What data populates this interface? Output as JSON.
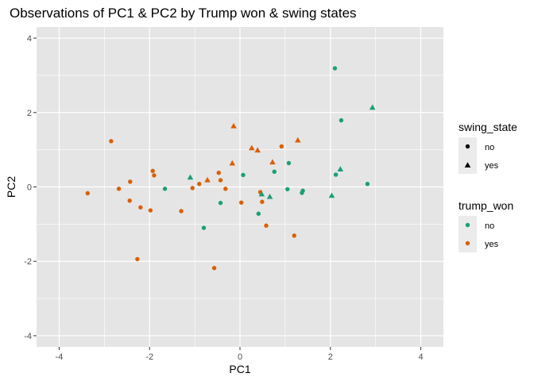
{
  "chart_data": {
    "type": "scatter",
    "title": "Observations of PC1 & PC2 by Trump won & swing states",
    "xlabel": "PC1",
    "ylabel": "PC2",
    "xlim": [
      -4.5,
      4.5
    ],
    "ylim": [
      -4.3,
      4.3
    ],
    "x_ticks": [
      -4,
      -2,
      0,
      2,
      4
    ],
    "y_ticks": [
      -4,
      -2,
      0,
      2,
      4
    ],
    "grid": true,
    "legend_position": "right",
    "legends": {
      "shape": {
        "title": "swing_state",
        "entries": [
          {
            "label": "no",
            "shape": "circle"
          },
          {
            "label": "yes",
            "shape": "triangle"
          }
        ]
      },
      "color": {
        "title": "trump_won",
        "entries": [
          {
            "label": "no",
            "color": "#1b9e77"
          },
          {
            "label": "yes",
            "color": "#d95f02"
          }
        ]
      }
    },
    "points": [
      {
        "x": -3.37,
        "y": -0.17,
        "swing_state": "no",
        "trump_won": "yes"
      },
      {
        "x": -2.85,
        "y": 1.23,
        "swing_state": "no",
        "trump_won": "yes"
      },
      {
        "x": -2.68,
        "y": -0.05,
        "swing_state": "no",
        "trump_won": "yes"
      },
      {
        "x": -2.43,
        "y": 0.14,
        "swing_state": "no",
        "trump_won": "yes"
      },
      {
        "x": -2.44,
        "y": -0.37,
        "swing_state": "no",
        "trump_won": "yes"
      },
      {
        "x": -2.27,
        "y": -1.94,
        "swing_state": "no",
        "trump_won": "yes"
      },
      {
        "x": -2.2,
        "y": -0.55,
        "swing_state": "no",
        "trump_won": "yes"
      },
      {
        "x": -1.98,
        "y": -0.63,
        "swing_state": "no",
        "trump_won": "yes"
      },
      {
        "x": -1.93,
        "y": 0.43,
        "swing_state": "no",
        "trump_won": "yes"
      },
      {
        "x": -1.9,
        "y": 0.31,
        "swing_state": "no",
        "trump_won": "yes"
      },
      {
        "x": -1.66,
        "y": -0.05,
        "swing_state": "no",
        "trump_won": "no"
      },
      {
        "x": -1.3,
        "y": -0.65,
        "swing_state": "no",
        "trump_won": "yes"
      },
      {
        "x": -1.1,
        "y": 0.25,
        "swing_state": "yes",
        "trump_won": "no"
      },
      {
        "x": -1.05,
        "y": -0.03,
        "swing_state": "no",
        "trump_won": "yes"
      },
      {
        "x": -0.9,
        "y": 0.08,
        "swing_state": "no",
        "trump_won": "yes"
      },
      {
        "x": -0.8,
        "y": -1.1,
        "swing_state": "no",
        "trump_won": "no"
      },
      {
        "x": -0.72,
        "y": 0.18,
        "swing_state": "yes",
        "trump_won": "yes"
      },
      {
        "x": -0.57,
        "y": -2.18,
        "swing_state": "no",
        "trump_won": "yes"
      },
      {
        "x": -0.47,
        "y": 0.38,
        "swing_state": "no",
        "trump_won": "yes"
      },
      {
        "x": -0.43,
        "y": 0.18,
        "swing_state": "no",
        "trump_won": "yes"
      },
      {
        "x": -0.43,
        "y": -0.43,
        "swing_state": "no",
        "trump_won": "no"
      },
      {
        "x": -0.32,
        "y": -0.05,
        "swing_state": "no",
        "trump_won": "yes"
      },
      {
        "x": -0.17,
        "y": 0.63,
        "swing_state": "yes",
        "trump_won": "yes"
      },
      {
        "x": -0.14,
        "y": 1.63,
        "swing_state": "yes",
        "trump_won": "yes"
      },
      {
        "x": 0.03,
        "y": -0.42,
        "swing_state": "no",
        "trump_won": "yes"
      },
      {
        "x": 0.07,
        "y": 0.32,
        "swing_state": "no",
        "trump_won": "no"
      },
      {
        "x": 0.26,
        "y": 1.04,
        "swing_state": "yes",
        "trump_won": "yes"
      },
      {
        "x": 0.39,
        "y": 0.98,
        "swing_state": "yes",
        "trump_won": "yes"
      },
      {
        "x": 0.41,
        "y": -0.72,
        "swing_state": "no",
        "trump_won": "no"
      },
      {
        "x": 0.45,
        "y": -0.14,
        "swing_state": "no",
        "trump_won": "yes"
      },
      {
        "x": 0.48,
        "y": -0.2,
        "swing_state": "yes",
        "trump_won": "no"
      },
      {
        "x": 0.49,
        "y": -0.4,
        "swing_state": "no",
        "trump_won": "yes"
      },
      {
        "x": 0.58,
        "y": -1.04,
        "swing_state": "no",
        "trump_won": "yes"
      },
      {
        "x": 0.66,
        "y": -0.27,
        "swing_state": "yes",
        "trump_won": "no"
      },
      {
        "x": 0.72,
        "y": 0.66,
        "swing_state": "yes",
        "trump_won": "yes"
      },
      {
        "x": 0.76,
        "y": 0.41,
        "swing_state": "no",
        "trump_won": "no"
      },
      {
        "x": 0.92,
        "y": 1.09,
        "swing_state": "no",
        "trump_won": "yes"
      },
      {
        "x": 1.05,
        "y": -0.06,
        "swing_state": "no",
        "trump_won": "no"
      },
      {
        "x": 1.08,
        "y": 0.64,
        "swing_state": "no",
        "trump_won": "no"
      },
      {
        "x": 1.2,
        "y": -1.31,
        "swing_state": "no",
        "trump_won": "yes"
      },
      {
        "x": 1.28,
        "y": 1.25,
        "swing_state": "yes",
        "trump_won": "yes"
      },
      {
        "x": 1.37,
        "y": -0.16,
        "swing_state": "no",
        "trump_won": "no"
      },
      {
        "x": 1.39,
        "y": -0.1,
        "swing_state": "no",
        "trump_won": "no"
      },
      {
        "x": 2.03,
        "y": -0.24,
        "swing_state": "yes",
        "trump_won": "no"
      },
      {
        "x": 2.1,
        "y": 3.19,
        "swing_state": "no",
        "trump_won": "no"
      },
      {
        "x": 2.12,
        "y": 0.33,
        "swing_state": "no",
        "trump_won": "no"
      },
      {
        "x": 2.22,
        "y": 0.47,
        "swing_state": "yes",
        "trump_won": "no"
      },
      {
        "x": 2.24,
        "y": 1.79,
        "swing_state": "no",
        "trump_won": "no"
      },
      {
        "x": 2.82,
        "y": 0.08,
        "swing_state": "no",
        "trump_won": "no"
      },
      {
        "x": 2.93,
        "y": 2.13,
        "swing_state": "yes",
        "trump_won": "no"
      }
    ]
  },
  "colors": {
    "panel_bg": "#e5e5e5",
    "grid": "#ffffff",
    "legend_key_bg": "#ebebeb",
    "no": "#1b9e77",
    "yes": "#d95f02",
    "tick_text": "#4d4d4d"
  }
}
